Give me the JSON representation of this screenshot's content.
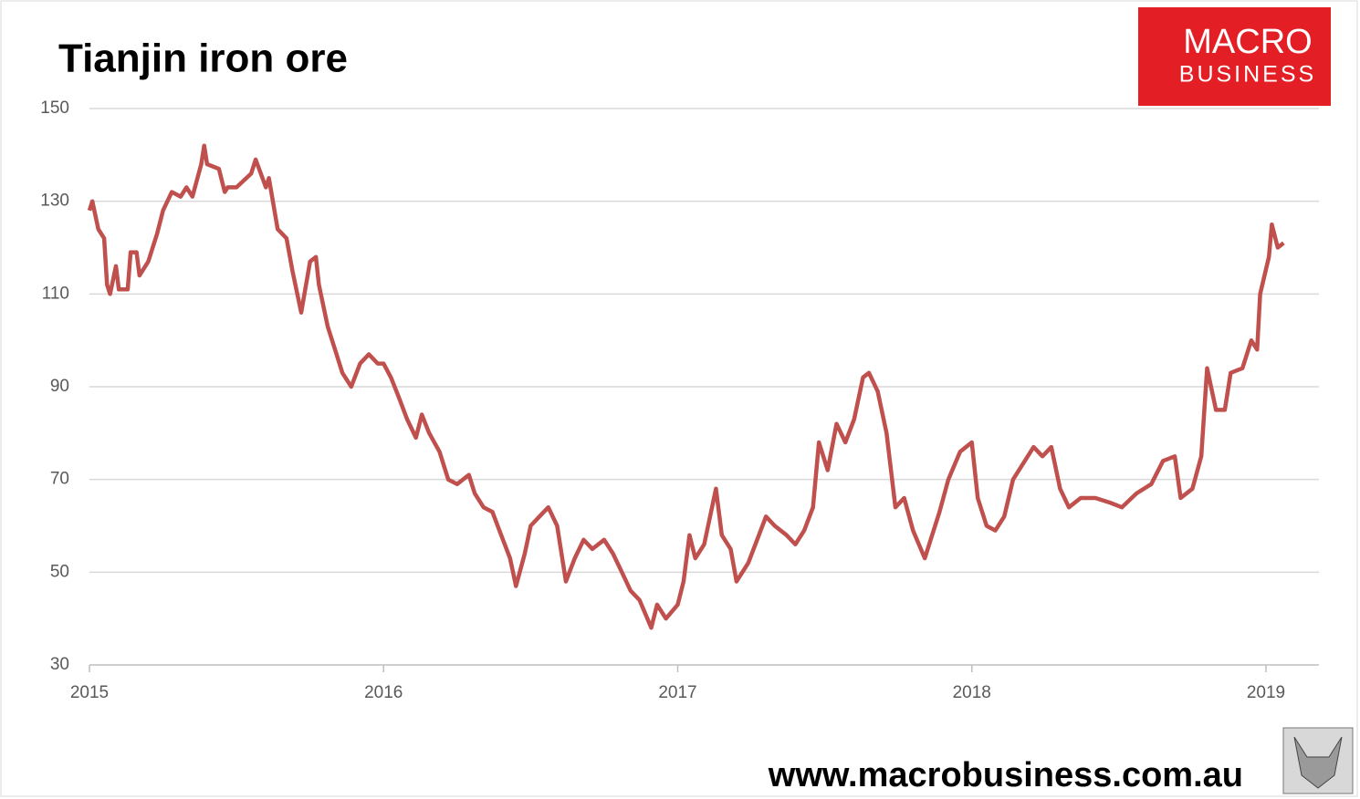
{
  "chart_data": {
    "type": "line",
    "title": "Tianjin iron ore",
    "x": [
      2015.0,
      2015.01,
      2015.03,
      2015.05,
      2015.06,
      2015.07,
      2015.09,
      2015.1,
      2015.13,
      2015.14,
      2015.16,
      2015.17,
      2015.2,
      2015.23,
      2015.25,
      2015.28,
      2015.31,
      2015.33,
      2015.35,
      2015.38,
      2015.39,
      2015.4,
      2015.44,
      2015.46,
      2015.47,
      2015.5,
      2015.55,
      2015.565,
      2015.6,
      2015.61,
      2015.64,
      2015.67,
      2015.69,
      2015.72,
      2015.75,
      2015.77,
      2015.78,
      2015.81,
      2015.84,
      2015.86,
      2015.89,
      2015.92,
      2015.95,
      2015.98,
      2016.0,
      2016.025,
      2016.05,
      2016.08,
      2016.11,
      2016.13,
      2016.155,
      2016.19,
      2016.22,
      2016.25,
      2016.29,
      2016.31,
      2016.34,
      2016.37,
      2016.4,
      2016.43,
      2016.45,
      2016.48,
      2016.5,
      2016.53,
      2016.56,
      2016.59,
      2016.62,
      2016.65,
      2016.68,
      2016.71,
      2016.75,
      2016.78,
      2016.81,
      2016.84,
      2016.87,
      2016.91,
      2016.93,
      2016.96,
      2017.0,
      2017.02,
      2017.04,
      2017.06,
      2017.09,
      2017.13,
      2017.15,
      2017.18,
      2017.2,
      2017.24,
      2017.27,
      2017.3,
      2017.33,
      2017.37,
      2017.4,
      2017.43,
      2017.46,
      2017.48,
      2017.51,
      2017.54,
      2017.57,
      2017.6,
      2017.63,
      2017.65,
      2017.68,
      2017.71,
      2017.74,
      2017.77,
      2017.8,
      2017.84,
      2017.86,
      2017.89,
      2017.92,
      2017.96,
      2018.0,
      2018.02,
      2018.05,
      2018.08,
      2018.11,
      2018.14,
      2018.18,
      2018.21,
      2018.24,
      2018.27,
      2018.3,
      2018.33,
      2018.37,
      2018.42,
      2018.47,
      2018.51,
      2018.56,
      2018.61,
      2018.65,
      2018.69,
      2018.71,
      2018.75,
      2018.78,
      2018.8,
      2018.83,
      2018.86,
      2018.88,
      2018.92,
      2018.95,
      2018.97,
      2018.98,
      2019.01,
      2019.02,
      2019.04,
      2019.06
    ],
    "series": [
      {
        "name": "Tianjin iron ore",
        "color": "#c0504d",
        "values": [
          128,
          130,
          124,
          122,
          112,
          110,
          116,
          111,
          111,
          119,
          119,
          114,
          117,
          123,
          128,
          132,
          131,
          133,
          131,
          138,
          142,
          138,
          137,
          132,
          133,
          133,
          136,
          139,
          133,
          135,
          124,
          122,
          115,
          106,
          117,
          118,
          112,
          103,
          97,
          93,
          90,
          95,
          97,
          95,
          95,
          92,
          88,
          83,
          79,
          84,
          80,
          76,
          70,
          69,
          71,
          67,
          64,
          63,
          58,
          53,
          47,
          54,
          60,
          62,
          64,
          60,
          48,
          53,
          57,
          55,
          57,
          54,
          50,
          46,
          44,
          38,
          43,
          40,
          43,
          48,
          58,
          53,
          56,
          68,
          58,
          55,
          48,
          52,
          57,
          62,
          60,
          58,
          56,
          59,
          64,
          78,
          72,
          82,
          78,
          83,
          92,
          93,
          89,
          80,
          64,
          66,
          59,
          53,
          57,
          63,
          70,
          76,
          78,
          66,
          60,
          59,
          62,
          70,
          74,
          77,
          75,
          77,
          68,
          64,
          66,
          66,
          65,
          64,
          67,
          69,
          74,
          75,
          66,
          68,
          75,
          94,
          85,
          85,
          93,
          94,
          100,
          98,
          110,
          118,
          125,
          120,
          121
        ]
      }
    ],
    "xlim": [
      2015,
      2019.18
    ],
    "xticks": [
      2015,
      2016,
      2017,
      2018,
      2019
    ],
    "ylim": [
      30,
      150
    ],
    "yticks": [
      30,
      50,
      70,
      90,
      110,
      130,
      150
    ],
    "grid": true
  },
  "logo": {
    "line1": "MACRO",
    "line2": "BUSINESS"
  },
  "footer": "www.macrobusiness.com.au"
}
